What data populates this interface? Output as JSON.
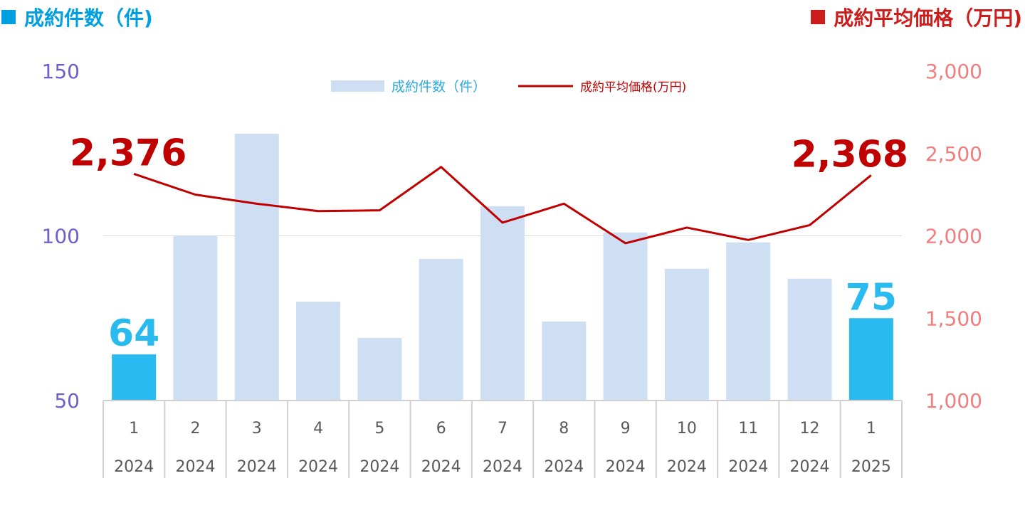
{
  "headers": {
    "left_label": "成約件数（件)",
    "right_label": "成約平均価格（万円)"
  },
  "colors": {
    "bar": "#cfdff3",
    "bar_highlight": "#29bbef",
    "line": "#c00000",
    "left_axis": "#6b5fcf",
    "right_axis": "#f07e7e",
    "header_left": "#00a0e0",
    "header_right": "#cc1d1d"
  },
  "chart_data": {
    "type": "bar",
    "categories": [
      {
        "month": "1",
        "year": "2024"
      },
      {
        "month": "2",
        "year": "2024"
      },
      {
        "month": "3",
        "year": "2024"
      },
      {
        "month": "4",
        "year": "2024"
      },
      {
        "month": "5",
        "year": "2024"
      },
      {
        "month": "6",
        "year": "2024"
      },
      {
        "month": "7",
        "year": "2024"
      },
      {
        "month": "8",
        "year": "2024"
      },
      {
        "month": "9",
        "year": "2024"
      },
      {
        "month": "10",
        "year": "2024"
      },
      {
        "month": "11",
        "year": "2024"
      },
      {
        "month": "12",
        "year": "2024"
      },
      {
        "month": "1",
        "year": "2025"
      }
    ],
    "series": [
      {
        "name": "成約件数（件）",
        "type": "bar",
        "axis": "left",
        "values": [
          64,
          100,
          131,
          80,
          69,
          93,
          109,
          74,
          101,
          90,
          98,
          87,
          75
        ],
        "highlight": [
          0,
          12
        ],
        "data_labels": {
          "0": "64",
          "12": "75"
        }
      },
      {
        "name": "成約平均価格(万円)",
        "type": "line",
        "axis": "right",
        "values": [
          2376,
          2250,
          2195,
          2150,
          2155,
          2418,
          2080,
          2195,
          1955,
          2050,
          1975,
          2065,
          2368
        ],
        "data_labels": {
          "0": "2,376",
          "12": "2,368"
        }
      }
    ],
    "left_axis": {
      "ylim": [
        50,
        150
      ],
      "ticks": [
        "50",
        "100",
        "150"
      ],
      "tick_values": [
        50,
        100,
        150
      ]
    },
    "right_axis": {
      "ylim": [
        1000,
        3000
      ],
      "ticks": [
        "1,000",
        "1,500",
        "2,000",
        "2,500",
        "3,000"
      ],
      "tick_values": [
        1000,
        1500,
        2000,
        2500,
        3000
      ]
    },
    "gridline_value": 100,
    "legend": {
      "position": "top-center",
      "entries": [
        "成約件数（件）",
        "成約平均価格(万円)"
      ]
    }
  }
}
